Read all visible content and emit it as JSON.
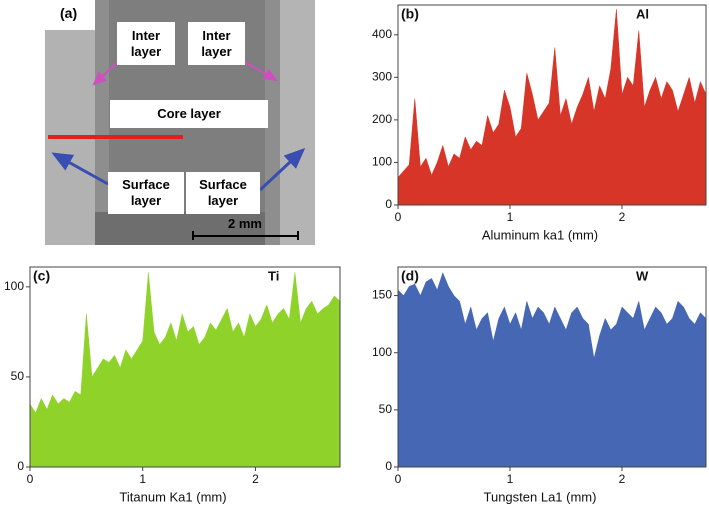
{
  "image_panel": {
    "label": "(a)",
    "inter_left": "Inter layer",
    "inter_right": "Inter layer",
    "core": "Core layer",
    "surface_left": "Surface layer",
    "surface_right": "Surface layer",
    "scale_bar": "2 mm"
  },
  "chart_data": [
    {
      "type": "area",
      "panel_label": "(b)",
      "element": "Al",
      "x_label": "Aluminum ka1 (mm)",
      "color": "#d73527",
      "x": [
        0,
        0.05,
        0.1,
        0.15,
        0.2,
        0.25,
        0.3,
        0.35,
        0.4,
        0.45,
        0.5,
        0.55,
        0.6,
        0.65,
        0.7,
        0.75,
        0.8,
        0.85,
        0.9,
        0.95,
        1,
        1.05,
        1.1,
        1.15,
        1.2,
        1.25,
        1.3,
        1.35,
        1.4,
        1.45,
        1.5,
        1.55,
        1.6,
        1.65,
        1.7,
        1.75,
        1.8,
        1.85,
        1.9,
        1.95,
        2,
        2.05,
        2.1,
        2.15,
        2.2,
        2.25,
        2.3,
        2.35,
        2.4,
        2.45,
        2.5,
        2.55,
        2.6,
        2.65,
        2.7,
        2.75
      ],
      "values": [
        65,
        80,
        95,
        250,
        90,
        110,
        70,
        100,
        140,
        90,
        120,
        110,
        160,
        130,
        150,
        140,
        210,
        170,
        190,
        270,
        230,
        160,
        180,
        310,
        260,
        200,
        220,
        240,
        370,
        210,
        250,
        190,
        230,
        260,
        300,
        220,
        280,
        250,
        320,
        460,
        260,
        300,
        280,
        410,
        230,
        270,
        300,
        250,
        290,
        270,
        220,
        260,
        300,
        240,
        290,
        260
      ],
      "xlim": [
        0,
        2.75
      ],
      "xticks": [
        0,
        1,
        2
      ],
      "ylim": [
        0,
        470
      ],
      "yticks": [
        0,
        100,
        200,
        300,
        400
      ]
    },
    {
      "type": "area",
      "panel_label": "(c)",
      "element": "Ti",
      "x_label": "Titanum Ka1 (mm)",
      "color": "#8fd22a",
      "x": [
        0,
        0.05,
        0.1,
        0.15,
        0.2,
        0.25,
        0.3,
        0.35,
        0.4,
        0.45,
        0.5,
        0.55,
        0.6,
        0.65,
        0.7,
        0.75,
        0.8,
        0.85,
        0.9,
        0.95,
        1,
        1.05,
        1.1,
        1.15,
        1.2,
        1.25,
        1.3,
        1.35,
        1.4,
        1.45,
        1.5,
        1.55,
        1.6,
        1.65,
        1.7,
        1.75,
        1.8,
        1.85,
        1.9,
        1.95,
        2,
        2.05,
        2.1,
        2.15,
        2.2,
        2.25,
        2.3,
        2.35,
        2.4,
        2.45,
        2.5,
        2.55,
        2.6,
        2.65,
        2.7,
        2.75
      ],
      "values": [
        35,
        30,
        38,
        32,
        40,
        35,
        38,
        36,
        42,
        40,
        85,
        50,
        55,
        60,
        58,
        62,
        55,
        65,
        60,
        65,
        70,
        108,
        75,
        68,
        72,
        80,
        70,
        85,
        75,
        78,
        68,
        72,
        80,
        76,
        82,
        88,
        75,
        80,
        72,
        85,
        78,
        82,
        90,
        80,
        85,
        88,
        82,
        108,
        80,
        88,
        92,
        85,
        88,
        90,
        95,
        92
      ],
      "xlim": [
        0,
        2.75
      ],
      "xticks": [
        0,
        1,
        2
      ],
      "ylim": [
        0,
        111
      ],
      "yticks": [
        0,
        50,
        100
      ]
    },
    {
      "type": "area",
      "panel_label": "(d)",
      "element": "W",
      "x_label": "Tungsten La1 (mm)",
      "color": "#4668b4",
      "x": [
        0,
        0.05,
        0.1,
        0.15,
        0.2,
        0.25,
        0.3,
        0.35,
        0.4,
        0.45,
        0.5,
        0.55,
        0.6,
        0.65,
        0.7,
        0.75,
        0.8,
        0.85,
        0.9,
        0.95,
        1,
        1.05,
        1.1,
        1.15,
        1.2,
        1.25,
        1.3,
        1.35,
        1.4,
        1.45,
        1.5,
        1.55,
        1.6,
        1.65,
        1.7,
        1.75,
        1.8,
        1.85,
        1.9,
        1.95,
        2,
        2.05,
        2.1,
        2.15,
        2.2,
        2.25,
        2.3,
        2.35,
        2.4,
        2.45,
        2.5,
        2.55,
        2.6,
        2.65,
        2.7,
        2.75
      ],
      "values": [
        155,
        150,
        158,
        160,
        150,
        162,
        165,
        155,
        170,
        158,
        150,
        145,
        125,
        140,
        120,
        130,
        135,
        110,
        130,
        140,
        125,
        135,
        120,
        145,
        130,
        140,
        135,
        125,
        140,
        130,
        120,
        135,
        140,
        130,
        125,
        95,
        115,
        130,
        120,
        125,
        140,
        135,
        130,
        145,
        120,
        130,
        140,
        135,
        125,
        130,
        145,
        140,
        130,
        125,
        135,
        130
      ],
      "xlim": [
        0,
        2.75
      ],
      "xticks": [
        0,
        1,
        2
      ],
      "ylim": [
        0,
        175
      ],
      "yticks": [
        0,
        50,
        100,
        150
      ]
    }
  ]
}
